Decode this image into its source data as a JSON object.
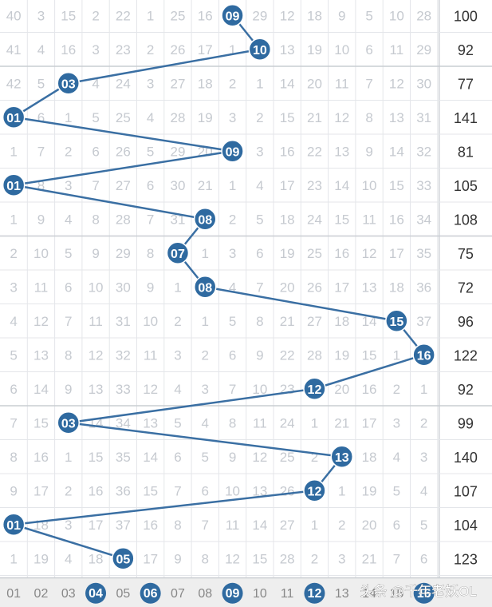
{
  "chart_data": {
    "type": "table",
    "columns": 16,
    "rows": [
      {
        "cells": [
          "40",
          "3",
          "15",
          "2",
          "22",
          "1",
          "25",
          "16",
          "",
          "29",
          "12",
          "18",
          "9",
          "5",
          "10",
          "28"
        ],
        "hit": 9,
        "sum": "100"
      },
      {
        "cells": [
          "41",
          "4",
          "16",
          "3",
          "23",
          "2",
          "26",
          "17",
          "1",
          "",
          "13",
          "19",
          "10",
          "6",
          "11",
          "29"
        ],
        "hit": 10,
        "sum": "92"
      },
      {
        "cells": [
          "42",
          "5",
          "",
          "4",
          "24",
          "3",
          "27",
          "18",
          "2",
          "1",
          "14",
          "20",
          "11",
          "7",
          "12",
          "30"
        ],
        "hit": 3,
        "sum": "77"
      },
      {
        "cells": [
          "",
          "6",
          "1",
          "5",
          "25",
          "4",
          "28",
          "19",
          "3",
          "2",
          "15",
          "21",
          "12",
          "8",
          "13",
          "31"
        ],
        "hit": 1,
        "sum": "141"
      },
      {
        "cells": [
          "1",
          "7",
          "2",
          "6",
          "26",
          "5",
          "29",
          "20",
          "",
          "3",
          "16",
          "22",
          "13",
          "9",
          "14",
          "32"
        ],
        "hit": 9,
        "sum": "81"
      },
      {
        "cells": [
          "",
          "8",
          "3",
          "7",
          "27",
          "6",
          "30",
          "21",
          "1",
          "4",
          "17",
          "23",
          "14",
          "10",
          "15",
          "33"
        ],
        "hit": 1,
        "sum": "105"
      },
      {
        "cells": [
          "1",
          "9",
          "4",
          "8",
          "28",
          "7",
          "31",
          "",
          "2",
          "5",
          "18",
          "24",
          "15",
          "11",
          "16",
          "34"
        ],
        "hit": 8,
        "sum": "108"
      },
      {
        "cells": [
          "2",
          "10",
          "5",
          "9",
          "29",
          "8",
          "",
          "1",
          "3",
          "6",
          "19",
          "25",
          "16",
          "12",
          "17",
          "35"
        ],
        "hit": 7,
        "sum": "75"
      },
      {
        "cells": [
          "3",
          "11",
          "6",
          "10",
          "30",
          "9",
          "1",
          "",
          "4",
          "7",
          "20",
          "26",
          "17",
          "13",
          "18",
          "36"
        ],
        "hit": 8,
        "sum": "72"
      },
      {
        "cells": [
          "4",
          "12",
          "7",
          "11",
          "31",
          "10",
          "2",
          "1",
          "5",
          "8",
          "21",
          "27",
          "18",
          "14",
          "",
          "37"
        ],
        "hit": 15,
        "sum": "96"
      },
      {
        "cells": [
          "5",
          "13",
          "8",
          "12",
          "32",
          "11",
          "3",
          "2",
          "6",
          "9",
          "22",
          "28",
          "19",
          "15",
          "1",
          ""
        ],
        "hit": 16,
        "sum": "122"
      },
      {
        "cells": [
          "6",
          "14",
          "9",
          "13",
          "33",
          "12",
          "4",
          "3",
          "7",
          "10",
          "23",
          "",
          "20",
          "16",
          "2",
          "1"
        ],
        "hit": 12,
        "sum": "92"
      },
      {
        "cells": [
          "7",
          "15",
          "",
          "14",
          "34",
          "13",
          "5",
          "4",
          "8",
          "11",
          "24",
          "1",
          "21",
          "17",
          "3",
          "2"
        ],
        "hit": 3,
        "sum": "99"
      },
      {
        "cells": [
          "8",
          "16",
          "1",
          "15",
          "35",
          "14",
          "6",
          "5",
          "9",
          "12",
          "25",
          "2",
          "",
          "18",
          "4",
          "3"
        ],
        "hit": 13,
        "sum": "140"
      },
      {
        "cells": [
          "9",
          "17",
          "2",
          "16",
          "36",
          "15",
          "7",
          "6",
          "10",
          "13",
          "26",
          "",
          "1",
          "19",
          "5",
          "4"
        ],
        "hit": 12,
        "sum": "107"
      },
      {
        "cells": [
          "",
          "18",
          "3",
          "17",
          "37",
          "16",
          "8",
          "7",
          "11",
          "14",
          "27",
          "1",
          "2",
          "20",
          "6",
          "5"
        ],
        "hit": 1,
        "sum": "104"
      },
      {
        "cells": [
          "1",
          "19",
          "4",
          "18",
          "",
          "17",
          "9",
          "8",
          "12",
          "15",
          "28",
          "2",
          "3",
          "21",
          "7",
          "6"
        ],
        "hit": 5,
        "sum": "123"
      }
    ],
    "footer": [
      "01",
      "02",
      "03",
      "04",
      "05",
      "06",
      "07",
      "08",
      "09",
      "10",
      "11",
      "12",
      "13",
      "14",
      "15",
      "16"
    ],
    "footer_highlight": [
      4,
      6,
      9,
      12,
      16
    ]
  },
  "watermark": "头条 @千年老妖OL",
  "colors": {
    "ball": "#2f6aa0",
    "ball_text": "#ffffff",
    "line": "#3a6fa3",
    "faded_text": "#c6cad0",
    "grid": "#e4e6ea",
    "sum_text": "#333333",
    "footer_bg": "#eeeeee",
    "footer_text": "#888888"
  }
}
